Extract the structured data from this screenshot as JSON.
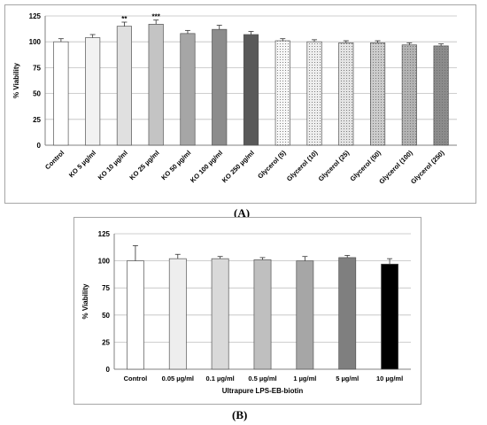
{
  "chart_data": [
    {
      "type": "bar",
      "panel_label": "(A)",
      "ylabel": "% Viability",
      "xlabel": "",
      "ylim": [
        0,
        125
      ],
      "yticks": [
        0,
        25,
        50,
        75,
        100,
        125
      ],
      "grid": true,
      "categories": [
        "Control",
        "KO 5 µg/ml",
        "KO 10 µg/ml",
        "KO 25 µg/ml",
        "KO 50 µg/ml",
        "KO 100 µg/ml",
        "KO 250 µg/ml",
        "Glycerol (5)",
        "Glycerol (10)",
        "Glycerol (25)",
        "Glycerol (50)",
        "Glycerol (100)",
        "Glycerol (250)"
      ],
      "values": [
        100,
        104,
        115,
        117,
        108,
        112,
        107,
        101,
        100,
        99,
        99,
        97,
        96
      ],
      "errors": [
        3,
        3,
        4,
        4,
        3,
        4,
        3,
        2,
        2,
        2,
        2,
        2,
        2
      ],
      "annotations": [
        "",
        "",
        "**",
        "***",
        "",
        "",
        "",
        "",
        "",
        "",
        "",
        "",
        ""
      ],
      "colors": [
        "#ffffff",
        "#f2f2f2",
        "#e0e0e0",
        "#c4c4c4",
        "#a6a6a6",
        "#8c8c8c",
        "#595959",
        "#f7f7f7",
        "#eeeeee",
        "#e4e4e4",
        "#cccccc",
        "#b3b3b3",
        "#8c8c8c"
      ],
      "patterns": [
        "none",
        "none",
        "none",
        "none",
        "none",
        "none",
        "none",
        "dots",
        "dots",
        "dots",
        "dots",
        "dots",
        "dots"
      ]
    },
    {
      "type": "bar",
      "panel_label": "(B)",
      "ylabel": "% Viability",
      "xlabel": "Ultrapure LPS-EB-biotin",
      "ylim": [
        0,
        125
      ],
      "yticks": [
        0,
        25,
        50,
        75,
        100,
        125
      ],
      "grid": true,
      "categories": [
        "Control",
        "0.05 µg/ml",
        "0.1 µg/ml",
        "0.5 µg/ml",
        "1 µg/ml",
        "5 µg/ml",
        "10 µg/ml"
      ],
      "values": [
        100,
        102,
        102,
        101,
        100,
        103,
        97
      ],
      "errors": [
        14,
        4,
        2,
        2,
        4,
        2,
        5
      ],
      "annotations": [
        "",
        "",
        "",
        "",
        "",
        "",
        ""
      ],
      "colors": [
        "#ffffff",
        "#eeeeee",
        "#d9d9d9",
        "#bfbfbf",
        "#a6a6a6",
        "#7f7f7f",
        "#000000"
      ],
      "patterns": [
        "none",
        "none",
        "none",
        "none",
        "none",
        "none",
        "none"
      ]
    }
  ]
}
